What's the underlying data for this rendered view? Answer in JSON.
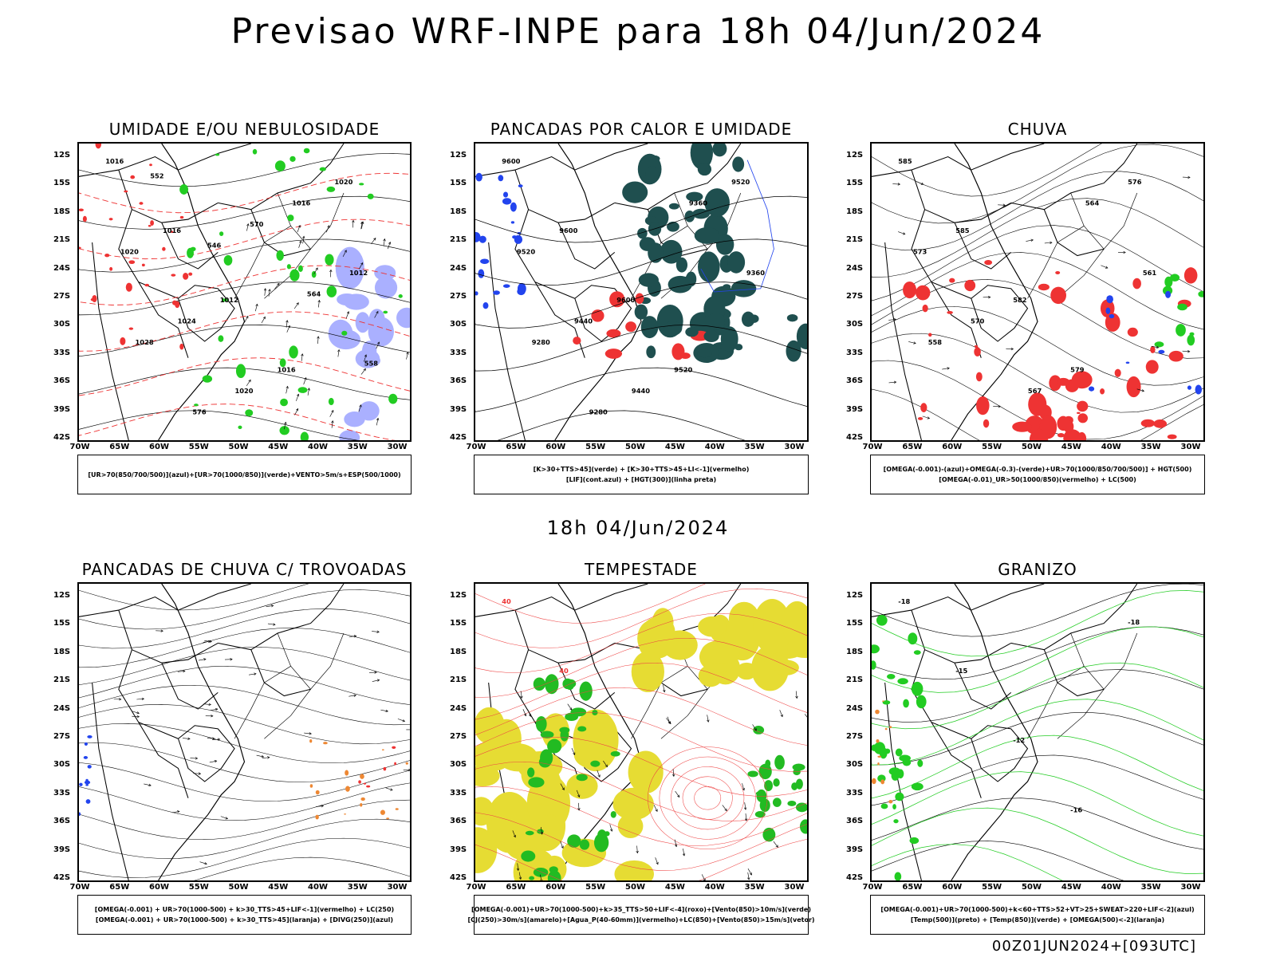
{
  "main_title": "Previsao WRF-INPE  para 18h 04/Jun/2024",
  "mid_title": "18h 04/Jun/2024",
  "footer": "00Z01JUN2024+[093UTC]",
  "lat_labels": [
    "12S",
    "15S",
    "18S",
    "21S",
    "24S",
    "27S",
    "30S",
    "33S",
    "36S",
    "39S",
    "42S"
  ],
  "lon_labels": [
    "70W",
    "65W",
    "60W",
    "55W",
    "50W",
    "45W",
    "40W",
    "35W",
    "30W"
  ],
  "panels": [
    {
      "title": "UMIDADE E/OU NEBULOSIDADE",
      "legend": [
        "[UR>70(850/700/500)](azul)+[UR>70(1000/850)](verde)+VENTO>5m/s+ESP(500/1000)"
      ],
      "contour_labels": [
        "1016",
        "1016",
        "1012",
        "1016",
        "1020",
        "1020",
        "1024",
        "1020",
        "1016",
        "1012",
        "1028",
        "576",
        "570",
        "564",
        "558",
        "552",
        "546"
      ]
    },
    {
      "title": "PANCADAS POR CALOR E UMIDADE",
      "legend": [
        "[K>30+TTS>45](verde) + [K>30+TTS>45+LI<-1](vermelho)",
        "[LIF](cont.azul) + [HGT(300)](linha preta)"
      ],
      "contour_labels": [
        "9600",
        "9600",
        "9600",
        "9520",
        "9520",
        "9520",
        "9440",
        "9440",
        "9360",
        "9360",
        "9280",
        "9280"
      ]
    },
    {
      "title": "CHUVA",
      "legend": [
        "[OMEGA(-0.001)-(azul)+OMEGA(-0.3)-(verde)+UR>70(1000/850/700/500)] + HGT(500)",
        "[OMEGA(-0.01)_UR>50(1000/850)(vermelho) + LC(500)"
      ],
      "contour_labels": [
        "585",
        "585",
        "582",
        "579",
        "576",
        "573",
        "570",
        "567",
        "564",
        "561",
        "558"
      ]
    },
    {
      "title": "PANCADAS DE CHUVA C/ TROVOADAS",
      "legend": [
        "[OMEGA(-0.001) + UR>70(1000-500) + k>30_TTS>45+LIF<-1](vermelho) + LC(250)",
        "[OMEGA(-0.001) + UR>70(1000-500) + k>30_TTS>45](laranja) + [DIVG(250)](azul)"
      ],
      "contour_labels": []
    },
    {
      "title": "TEMPESTADE",
      "legend": [
        "[OMEGA(-0.001)+UR>70(1000-500)+k>35_TTS>50+LIF<-4](roxo)+[Vento(850)>10m/s](verde)",
        "[CJ(250)>30m/s](amarelo)+[Agua_P(40-60mm)](vermelho)+LC(850)+[Vento(850)>15m/s](vetor)"
      ],
      "contour_labels": [
        "40",
        "40"
      ]
    },
    {
      "title": "GRANIZO",
      "legend": [
        "[OMEGA(-0.001)+UR>70(1000-500)+k<60+TTS>52+VT>25+SWEAT>220+LIF<-2](azul)",
        "[Temp(500)](preto) + [Temp(850)](verde) + [OMEGA(500)<-2](laranja)"
      ],
      "contour_labels": [
        "-18",
        "-15",
        "-12",
        "-16",
        "-18"
      ]
    }
  ]
}
